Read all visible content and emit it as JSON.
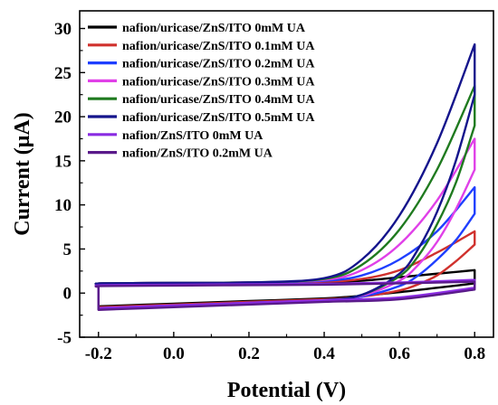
{
  "chart_data": {
    "type": "line",
    "xlabel": "Potential (V)",
    "ylabel": "Current (μA)",
    "xlim": [
      -0.25,
      0.85
    ],
    "ylim": [
      -5,
      32
    ],
    "x_ticks": [
      -0.2,
      0.0,
      0.2,
      0.4,
      0.6,
      0.8
    ],
    "x_tick_labels": [
      "-0.2",
      "0.0",
      "0.2",
      "0.4",
      "0.6",
      "0.8"
    ],
    "y_ticks": [
      -5,
      0,
      5,
      10,
      15,
      20,
      25,
      30
    ],
    "y_tick_labels": [
      "-5",
      "0",
      "5",
      "10",
      "15",
      "20",
      "25",
      "30"
    ],
    "grid": false,
    "legend_position": "top-left",
    "series": [
      {
        "name": "nafion/uricase/ZnS/ITO 0mM UA",
        "color": "#000000",
        "forward": [
          [
            -0.2,
            1.0
          ],
          [
            -0.19,
            1.1
          ],
          [
            0.0,
            1.15
          ],
          [
            0.2,
            1.2
          ],
          [
            0.4,
            1.25
          ],
          [
            0.5,
            1.4
          ],
          [
            0.6,
            1.8
          ],
          [
            0.7,
            2.2
          ],
          [
            0.8,
            2.6
          ]
        ],
        "reverse": [
          [
            0.8,
            1.1
          ],
          [
            0.7,
            0.6
          ],
          [
            0.6,
            0.1
          ],
          [
            0.5,
            -0.3
          ],
          [
            0.4,
            -0.6
          ],
          [
            0.2,
            -0.9
          ],
          [
            0.0,
            -1.2
          ],
          [
            -0.2,
            -1.5
          ]
        ]
      },
      {
        "name": "nafion/uricase/ZnS/ITO 0.1mM UA",
        "color": "#d0312d",
        "forward": [
          [
            -0.2,
            1.0
          ],
          [
            -0.19,
            1.1
          ],
          [
            0.0,
            1.15
          ],
          [
            0.2,
            1.2
          ],
          [
            0.4,
            1.3
          ],
          [
            0.5,
            1.6
          ],
          [
            0.6,
            2.6
          ],
          [
            0.7,
            4.6
          ],
          [
            0.8,
            7.0
          ]
        ],
        "reverse": [
          [
            0.8,
            5.5
          ],
          [
            0.75,
            3.6
          ],
          [
            0.7,
            2.0
          ],
          [
            0.65,
            1.0
          ],
          [
            0.6,
            0.3
          ],
          [
            0.5,
            -0.4
          ],
          [
            0.4,
            -0.7
          ],
          [
            0.2,
            -1.0
          ],
          [
            0.0,
            -1.3
          ],
          [
            -0.2,
            -1.6
          ]
        ]
      },
      {
        "name": "nafion/uricase/ZnS/ITO 0.2mM UA",
        "color": "#1f3fff",
        "forward": [
          [
            -0.2,
            1.0
          ],
          [
            -0.19,
            1.1
          ],
          [
            0.0,
            1.15
          ],
          [
            0.2,
            1.2
          ],
          [
            0.4,
            1.4
          ],
          [
            0.5,
            2.0
          ],
          [
            0.6,
            3.8
          ],
          [
            0.7,
            7.0
          ],
          [
            0.8,
            12.0
          ]
        ],
        "reverse": [
          [
            0.8,
            9.0
          ],
          [
            0.75,
            6.0
          ],
          [
            0.7,
            3.8
          ],
          [
            0.65,
            2.0
          ],
          [
            0.6,
            0.8
          ],
          [
            0.5,
            -0.4
          ],
          [
            0.4,
            -0.8
          ],
          [
            0.2,
            -1.1
          ],
          [
            0.0,
            -1.4
          ],
          [
            -0.2,
            -1.7
          ]
        ]
      },
      {
        "name": "nafion/uricase/ZnS/ITO 0.3mM UA",
        "color": "#e040e8",
        "forward": [
          [
            -0.2,
            1.0
          ],
          [
            -0.19,
            1.1
          ],
          [
            0.0,
            1.15
          ],
          [
            0.2,
            1.2
          ],
          [
            0.4,
            1.5
          ],
          [
            0.5,
            2.6
          ],
          [
            0.6,
            5.5
          ],
          [
            0.7,
            10.5
          ],
          [
            0.8,
            17.5
          ]
        ],
        "reverse": [
          [
            0.8,
            14.0
          ],
          [
            0.75,
            9.5
          ],
          [
            0.7,
            5.8
          ],
          [
            0.65,
            3.2
          ],
          [
            0.6,
            1.4
          ],
          [
            0.5,
            -0.3
          ],
          [
            0.4,
            -0.8
          ],
          [
            0.2,
            -1.2
          ],
          [
            0.0,
            -1.5
          ],
          [
            -0.2,
            -1.8
          ]
        ]
      },
      {
        "name": "nafion/uricase/ZnS/ITO 0.4mM UA",
        "color": "#1f7a1f",
        "forward": [
          [
            -0.2,
            1.0
          ],
          [
            -0.19,
            1.1
          ],
          [
            0.0,
            1.15
          ],
          [
            0.2,
            1.2
          ],
          [
            0.4,
            1.6
          ],
          [
            0.5,
            3.2
          ],
          [
            0.6,
            7.2
          ],
          [
            0.7,
            14.0
          ],
          [
            0.8,
            23.5
          ]
        ],
        "reverse": [
          [
            0.8,
            19.0
          ],
          [
            0.75,
            12.5
          ],
          [
            0.7,
            7.8
          ],
          [
            0.65,
            4.2
          ],
          [
            0.6,
            1.9
          ],
          [
            0.5,
            -0.2
          ],
          [
            0.4,
            -0.8
          ],
          [
            0.2,
            -1.2
          ],
          [
            0.0,
            -1.5
          ],
          [
            -0.2,
            -1.8
          ]
        ]
      },
      {
        "name": "nafion/uricase/ZnS/ITO 0.5mM UA",
        "color": "#14148c",
        "forward": [
          [
            -0.2,
            1.0
          ],
          [
            -0.19,
            1.1
          ],
          [
            0.0,
            1.15
          ],
          [
            0.2,
            1.2
          ],
          [
            0.4,
            1.7
          ],
          [
            0.5,
            3.8
          ],
          [
            0.6,
            8.8
          ],
          [
            0.7,
            17.0
          ],
          [
            0.8,
            28.2
          ]
        ],
        "reverse": [
          [
            0.8,
            22.5
          ],
          [
            0.75,
            15.0
          ],
          [
            0.7,
            9.2
          ],
          [
            0.65,
            5.0
          ],
          [
            0.6,
            2.2
          ],
          [
            0.5,
            -0.2
          ],
          [
            0.4,
            -0.8
          ],
          [
            0.2,
            -1.2
          ],
          [
            0.0,
            -1.5
          ],
          [
            -0.2,
            -1.8
          ]
        ]
      },
      {
        "name": "nafion/ZnS/ITO 0mM UA",
        "color": "#8a2be2",
        "forward": [
          [
            -0.2,
            0.8
          ],
          [
            -0.19,
            0.9
          ],
          [
            0.0,
            0.95
          ],
          [
            0.2,
            1.0
          ],
          [
            0.4,
            1.05
          ],
          [
            0.6,
            1.2
          ],
          [
            0.8,
            1.5
          ]
        ],
        "reverse": [
          [
            0.8,
            0.6
          ],
          [
            0.6,
            -0.5
          ],
          [
            0.4,
            -0.8
          ],
          [
            0.2,
            -1.1
          ],
          [
            0.0,
            -1.4
          ],
          [
            -0.2,
            -1.7
          ]
        ]
      },
      {
        "name": "nafion/ZnS/ITO 0.2mM UA",
        "color": "#5a1a8a",
        "forward": [
          [
            -0.2,
            0.7
          ],
          [
            -0.19,
            0.8
          ],
          [
            0.0,
            0.85
          ],
          [
            0.2,
            0.9
          ],
          [
            0.4,
            0.95
          ],
          [
            0.6,
            1.1
          ],
          [
            0.8,
            1.3
          ]
        ],
        "reverse": [
          [
            0.8,
            0.4
          ],
          [
            0.6,
            -0.7
          ],
          [
            0.4,
            -1.0
          ],
          [
            0.2,
            -1.3
          ],
          [
            0.0,
            -1.6
          ],
          [
            -0.2,
            -1.9
          ]
        ]
      }
    ]
  }
}
